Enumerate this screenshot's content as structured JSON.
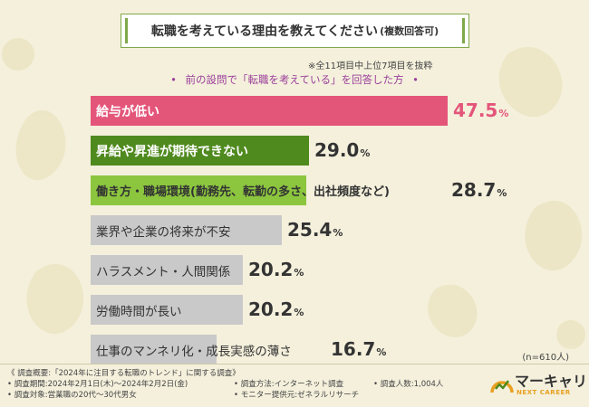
{
  "title": "転職を考えている理由を教えてください",
  "title_suffix": "(複数回答可)",
  "note": "※全11項目中上位7項目を抜粋",
  "subtitle": "前の設問で「転職を考えている」を回答した方",
  "sample_size": "(n=610人)",
  "colors": {
    "pink": "#e4557a",
    "dark_green": "#4f8a1e",
    "light_green": "#8cc63f",
    "gray": "#c9c9c9"
  },
  "chart_data": {
    "type": "bar",
    "orientation": "horizontal",
    "categories": [
      "給与が低い",
      "昇給や昇進が期待できない",
      "働き方・職場環境(勤務先、転勤の多さ、出社頻度など)",
      "業界や企業の将来が不安",
      "ハラスメント・人間関係",
      "労働時間が長い",
      "仕事のマンネリ化・成長実感の薄さ"
    ],
    "values": [
      47.5,
      29.0,
      28.7,
      25.4,
      20.2,
      20.2,
      16.7
    ],
    "value_labels": [
      "47.5",
      "29.0",
      "28.7",
      "25.4",
      "20.2",
      "20.2",
      "16.7"
    ],
    "unit": "%",
    "bar_colors": [
      "pink",
      "dark_green",
      "light_green",
      "gray",
      "gray",
      "gray",
      "gray"
    ],
    "xlim": [
      0,
      50
    ]
  },
  "footer": {
    "overview": "《 調査概要:「2024年に注目する転職のトレンド」に関する調査》",
    "period": "• 調査期間:2024年2月1日(木)〜2024年2月2日(金)",
    "target": "• 調査対象:営業職の20代〜30代男女",
    "method": "• 調査方法:インターネット調査",
    "provider": "• モニター提供元:ゼネラルリサーチ",
    "respondents": "• 調査人数:1,004人"
  },
  "logo": {
    "name": "マーキャリ",
    "tagline": "NEXT CAREER"
  }
}
